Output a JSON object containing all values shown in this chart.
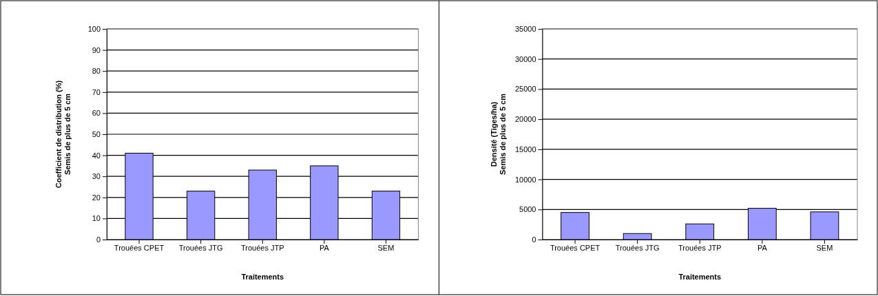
{
  "chart_data": [
    {
      "type": "bar",
      "categories": [
        "Trouées CPET",
        "Trouées JTG",
        "Trouées JTP",
        "PA",
        "SEM"
      ],
      "values": [
        41,
        23,
        33,
        35,
        23
      ],
      "color": "#9999ff",
      "xlabel": "Traitements",
      "ylabel": "Coefficient de distribution (%)\nSemis de plus de 5 cm",
      "ylim": [
        0,
        100
      ],
      "yticks": [
        0,
        10,
        20,
        30,
        40,
        50,
        60,
        70,
        80,
        90,
        100
      ],
      "grid": "y"
    },
    {
      "type": "bar",
      "categories": [
        "Trouées CPET",
        "Trouées JTG",
        "Trouées JTP",
        "PA",
        "SEM"
      ],
      "values": [
        4500,
        1000,
        2600,
        5200,
        4600
      ],
      "color": "#9999ff",
      "xlabel": "Traitements",
      "ylabel": "Densité (Tiges/ha)\nSemis de plus de 5 cm",
      "ylim": [
        0,
        35000
      ],
      "yticks": [
        0,
        5000,
        10000,
        15000,
        20000,
        25000,
        30000,
        35000
      ],
      "grid": "y"
    }
  ]
}
